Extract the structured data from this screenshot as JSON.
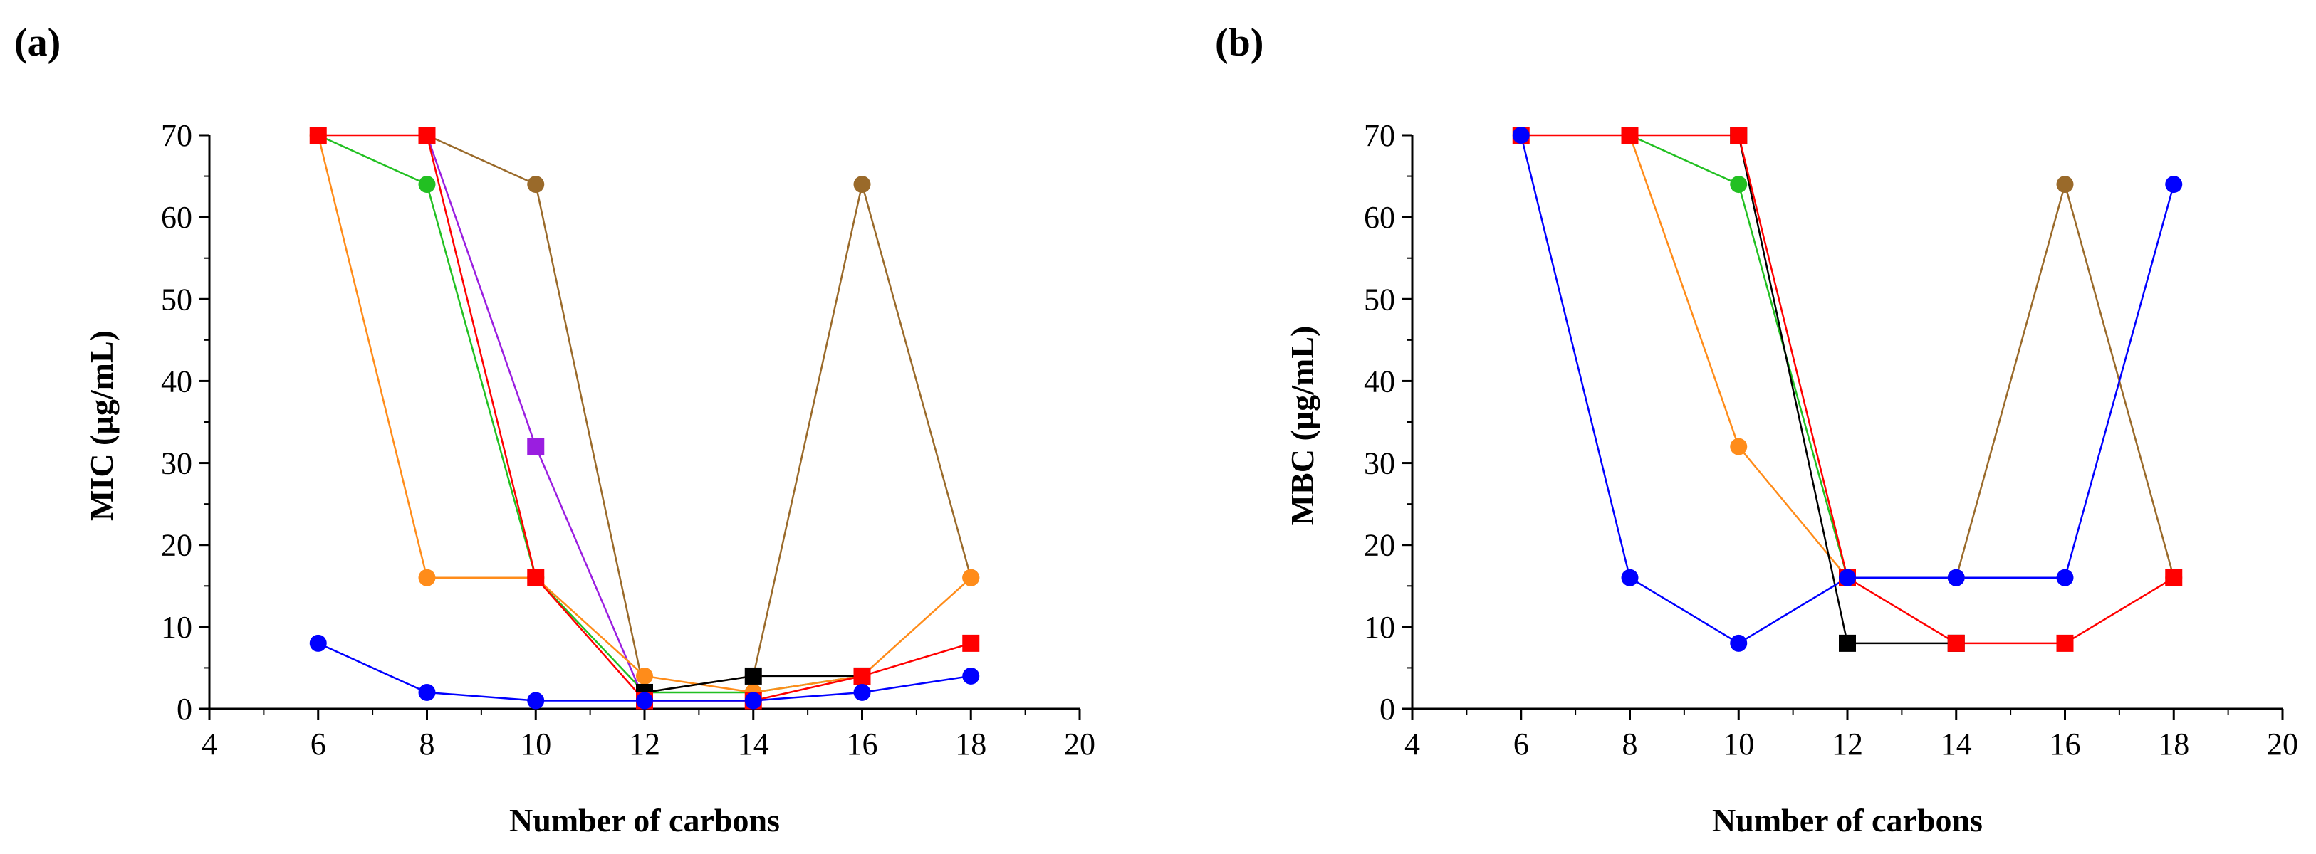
{
  "chart_data": [
    {
      "panel_label": "(a)",
      "type": "line",
      "xlabel": "Number of carbons",
      "ylabel": "MIC (µg/mL)",
      "xlim": [
        4,
        20
      ],
      "ylim": [
        0,
        70
      ],
      "xticks": [
        4,
        6,
        8,
        10,
        12,
        14,
        16,
        18,
        20
      ],
      "yticks": [
        0,
        10,
        20,
        30,
        40,
        50,
        60,
        70
      ],
      "grid": false,
      "series": [
        {
          "name": "brown",
          "color": "#9a6a2a",
          "marker": "circle",
          "x": [
            8,
            10,
            12,
            14,
            16,
            18
          ],
          "values": [
            70,
            64,
            2,
            4,
            64,
            16
          ]
        },
        {
          "name": "green",
          "color": "#22c022",
          "marker": "circle",
          "x": [
            6,
            8,
            10,
            12,
            14,
            16
          ],
          "values": [
            70,
            64,
            16,
            2,
            2,
            4
          ]
        },
        {
          "name": "purple",
          "color": "#9a1ee0",
          "marker": "square",
          "x": [
            8,
            10,
            12
          ],
          "values": [
            70,
            32,
            1
          ]
        },
        {
          "name": "orange",
          "color": "#ff8c1a",
          "marker": "circle",
          "x": [
            6,
            8,
            10,
            12,
            14,
            16,
            18
          ],
          "values": [
            70,
            16,
            16,
            4,
            2,
            4,
            16
          ]
        },
        {
          "name": "black",
          "color": "#000000",
          "marker": "square",
          "x": [
            12,
            14,
            16
          ],
          "values": [
            2,
            4,
            4
          ]
        },
        {
          "name": "red",
          "color": "#ff0000",
          "marker": "square",
          "x": [
            6,
            8,
            10,
            12,
            14,
            16,
            18
          ],
          "values": [
            70,
            70,
            16,
            1,
            1,
            4,
            8
          ]
        },
        {
          "name": "blue",
          "color": "#0000ff",
          "marker": "circle",
          "x": [
            6,
            8,
            10,
            12,
            14,
            16,
            18
          ],
          "values": [
            8,
            2,
            1,
            1,
            1,
            2,
            4
          ]
        }
      ]
    },
    {
      "panel_label": "(b)",
      "type": "line",
      "xlabel": "Number of carbons",
      "ylabel": "MBC (µg/mL)",
      "xlim": [
        4,
        20
      ],
      "ylim": [
        0,
        70
      ],
      "xticks": [
        4,
        6,
        8,
        10,
        12,
        14,
        16,
        18,
        20
      ],
      "yticks": [
        0,
        10,
        20,
        30,
        40,
        50,
        60,
        70
      ],
      "grid": false,
      "series": [
        {
          "name": "brown",
          "color": "#9a6a2a",
          "marker": "circle",
          "x": [
            14,
            16,
            18
          ],
          "values": [
            16,
            64,
            16
          ]
        },
        {
          "name": "green",
          "color": "#22c022",
          "marker": "circle",
          "x": [
            8,
            10,
            12
          ],
          "values": [
            70,
            64,
            16
          ]
        },
        {
          "name": "orange",
          "color": "#ff8c1a",
          "marker": "circle",
          "x": [
            8,
            10,
            12
          ],
          "values": [
            70,
            32,
            16
          ]
        },
        {
          "name": "black",
          "color": "#000000",
          "marker": "square",
          "x": [
            10,
            12,
            14
          ],
          "values": [
            70,
            8,
            8
          ]
        },
        {
          "name": "red",
          "color": "#ff0000",
          "marker": "square",
          "x": [
            6,
            8,
            10,
            12,
            14,
            16,
            18
          ],
          "values": [
            70,
            70,
            70,
            16,
            8,
            8,
            16
          ]
        },
        {
          "name": "blue",
          "color": "#0000ff",
          "marker": "circle",
          "x": [
            6,
            8,
            10,
            12,
            14,
            16,
            18
          ],
          "values": [
            70,
            16,
            8,
            16,
            16,
            16,
            64
          ]
        }
      ]
    }
  ]
}
